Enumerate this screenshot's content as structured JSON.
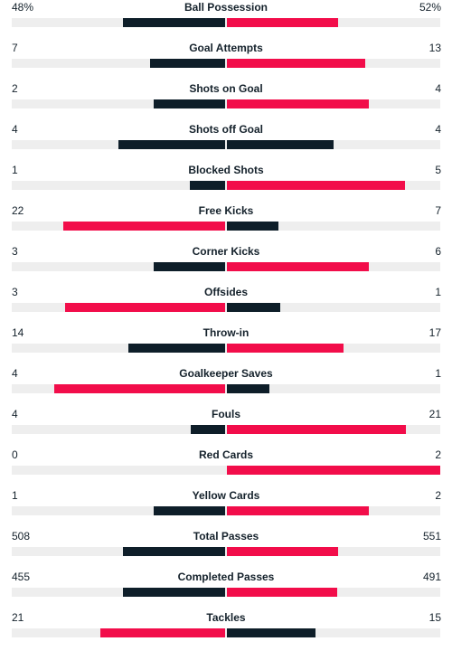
{
  "colors": {
    "leader": "#f20d4a",
    "trailer": "#0e1e29",
    "track": "#eeeeee"
  },
  "stats": [
    {
      "label": "Ball Possession",
      "home": "48%",
      "away": "52%",
      "home_value": 48,
      "away_value": 52
    },
    {
      "label": "Goal Attempts",
      "home": "7",
      "away": "13",
      "home_value": 7,
      "away_value": 13
    },
    {
      "label": "Shots on Goal",
      "home": "2",
      "away": "4",
      "home_value": 2,
      "away_value": 4
    },
    {
      "label": "Shots off Goal",
      "home": "4",
      "away": "4",
      "home_value": 4,
      "away_value": 4
    },
    {
      "label": "Blocked Shots",
      "home": "1",
      "away": "5",
      "home_value": 1,
      "away_value": 5
    },
    {
      "label": "Free Kicks",
      "home": "22",
      "away": "7",
      "home_value": 22,
      "away_value": 7
    },
    {
      "label": "Corner Kicks",
      "home": "3",
      "away": "6",
      "home_value": 3,
      "away_value": 6
    },
    {
      "label": "Offsides",
      "home": "3",
      "away": "1",
      "home_value": 3,
      "away_value": 1
    },
    {
      "label": "Throw-in",
      "home": "14",
      "away": "17",
      "home_value": 14,
      "away_value": 17
    },
    {
      "label": "Goalkeeper Saves",
      "home": "4",
      "away": "1",
      "home_value": 4,
      "away_value": 1
    },
    {
      "label": "Fouls",
      "home": "4",
      "away": "21",
      "home_value": 4,
      "away_value": 21
    },
    {
      "label": "Red Cards",
      "home": "0",
      "away": "2",
      "home_value": 0,
      "away_value": 2
    },
    {
      "label": "Yellow Cards",
      "home": "1",
      "away": "2",
      "home_value": 1,
      "away_value": 2
    },
    {
      "label": "Total Passes",
      "home": "508",
      "away": "551",
      "home_value": 508,
      "away_value": 551
    },
    {
      "label": "Completed Passes",
      "home": "455",
      "away": "491",
      "home_value": 455,
      "away_value": 491
    },
    {
      "label": "Tackles",
      "home": "21",
      "away": "15",
      "home_value": 21,
      "away_value": 15
    }
  ]
}
